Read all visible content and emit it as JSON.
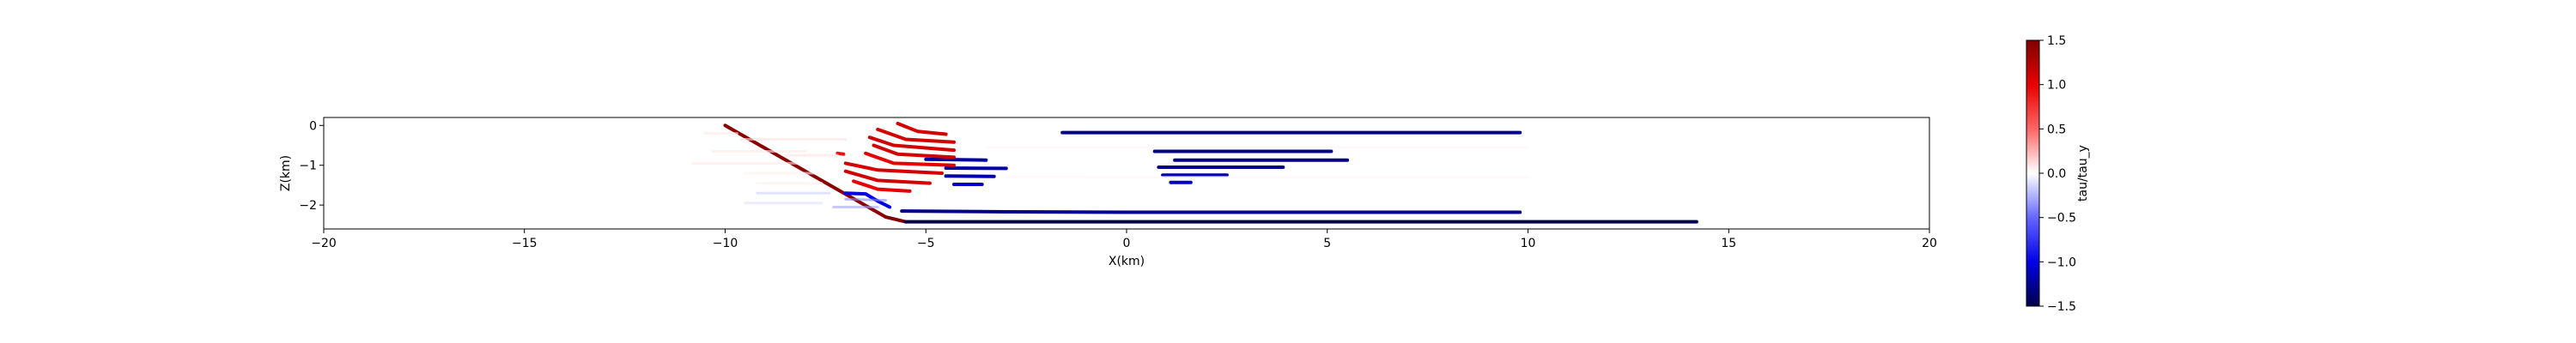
{
  "chart_data": {
    "type": "scatter",
    "title": "",
    "xlabel": "X(km)",
    "ylabel": "Z(km)",
    "xlim": [
      -20,
      20
    ],
    "ylim": [
      -2.6,
      0.2
    ],
    "xticks": [
      "−20",
      "−15",
      "−10",
      "−5",
      "0",
      "5",
      "10",
      "15",
      "20"
    ],
    "xtick_values": [
      -20,
      -15,
      -10,
      -5,
      0,
      5,
      10,
      15,
      20
    ],
    "yticks": [
      "0",
      "−1",
      "−2"
    ],
    "ytick_values": [
      0,
      -1,
      -2
    ],
    "colorbar": {
      "label": "tau/tau_y",
      "range": [
        -1.5,
        1.5
      ],
      "colormap": "seismic",
      "ticks": [
        "1.5",
        "1.0",
        "0.5",
        "0.0",
        "−0.5",
        "−1.0",
        "−1.5"
      ],
      "tick_values": [
        1.5,
        1.0,
        0.5,
        0.0,
        -0.5,
        -1.0,
        -1.5
      ]
    },
    "series": [
      {
        "kind": "line",
        "points": [
          [
            -10.0,
            0.0
          ],
          [
            -6.0,
            -2.3
          ],
          [
            -5.5,
            -2.42
          ],
          [
            14.2,
            -2.42
          ]
        ],
        "value_stops": [
          1.45,
          1.5,
          -1.5,
          -1.5,
          -1.5
        ]
      },
      {
        "kind": "line",
        "points": [
          [
            -5.6,
            -2.15
          ],
          [
            -3.0,
            -2.17
          ],
          [
            0.0,
            -2.18
          ],
          [
            3.0,
            -2.18
          ],
          [
            9.8,
            -2.18
          ]
        ],
        "value": -1.3
      },
      {
        "kind": "line",
        "points": [
          [
            -1.6,
            -0.18
          ],
          [
            9.8,
            -0.18
          ]
        ],
        "value": -1.3
      },
      {
        "kind": "line",
        "points": [
          [
            0.7,
            -0.65
          ],
          [
            5.1,
            -0.65
          ]
        ],
        "value": -1.3
      },
      {
        "kind": "line",
        "points": [
          [
            1.2,
            -0.87
          ],
          [
            5.5,
            -0.87
          ]
        ],
        "value": -1.3
      },
      {
        "kind": "line",
        "points": [
          [
            0.8,
            -1.05
          ],
          [
            3.9,
            -1.05
          ]
        ],
        "value": -1.3
      },
      {
        "kind": "line",
        "points": [
          [
            0.9,
            -1.25
          ],
          [
            2.5,
            -1.25
          ]
        ],
        "value": -1.2
      },
      {
        "kind": "line",
        "points": [
          [
            1.1,
            -1.43
          ],
          [
            1.6,
            -1.43
          ]
        ],
        "value": -1.1
      },
      {
        "kind": "line",
        "points": [
          [
            -5.0,
            -0.85
          ],
          [
            -3.5,
            -0.87
          ]
        ],
        "value": -1.2
      },
      {
        "kind": "line",
        "points": [
          [
            -4.5,
            -1.07
          ],
          [
            -3.0,
            -1.08
          ]
        ],
        "value": -1.2
      },
      {
        "kind": "line",
        "points": [
          [
            -4.5,
            -1.27
          ],
          [
            -3.3,
            -1.28
          ]
        ],
        "value": -1.2
      },
      {
        "kind": "line",
        "points": [
          [
            -4.3,
            -1.48
          ],
          [
            -3.6,
            -1.48
          ]
        ],
        "value": -1.1
      },
      {
        "kind": "line",
        "points": [
          [
            -7.0,
            -1.7
          ],
          [
            -6.5,
            -1.72
          ],
          [
            -6.2,
            -1.9
          ],
          [
            -5.9,
            -2.05
          ]
        ],
        "value": -1.0
      },
      {
        "kind": "line",
        "points": [
          [
            -7.0,
            -1.85
          ],
          [
            -6.0,
            -1.88
          ]
        ],
        "value": -0.4
      },
      {
        "kind": "line",
        "points": [
          [
            -7.3,
            -2.05
          ],
          [
            -6.2,
            -2.05
          ]
        ],
        "value": -0.3
      },
      {
        "kind": "line",
        "points": [
          [
            -9.2,
            -1.7
          ],
          [
            -7.4,
            -1.7
          ]
        ],
        "value": -0.15
      },
      {
        "kind": "line",
        "points": [
          [
            -9.5,
            -1.95
          ],
          [
            -7.6,
            -1.95
          ]
        ],
        "value": -0.1
      },
      {
        "kind": "line",
        "points": [
          [
            -5.7,
            0.05
          ],
          [
            -5.2,
            -0.15
          ],
          [
            -4.5,
            -0.22
          ]
        ],
        "value": 1.1
      },
      {
        "kind": "line",
        "points": [
          [
            -6.2,
            -0.1
          ],
          [
            -5.5,
            -0.35
          ],
          [
            -4.3,
            -0.42
          ]
        ],
        "value": 1.1
      },
      {
        "kind": "line",
        "points": [
          [
            -6.4,
            -0.3
          ],
          [
            -5.8,
            -0.5
          ],
          [
            -4.3,
            -0.62
          ]
        ],
        "value": 1.1
      },
      {
        "kind": "line",
        "points": [
          [
            -6.3,
            -0.5
          ],
          [
            -5.7,
            -0.72
          ],
          [
            -4.3,
            -0.8
          ]
        ],
        "value": 1.1
      },
      {
        "kind": "line",
        "points": [
          [
            -6.5,
            -0.7
          ],
          [
            -5.8,
            -0.95
          ],
          [
            -4.3,
            -1.0
          ]
        ],
        "value": 1.0
      },
      {
        "kind": "line",
        "points": [
          [
            -7.0,
            -0.95
          ],
          [
            -6.2,
            -1.12
          ],
          [
            -4.6,
            -1.2
          ]
        ],
        "value": 1.1
      },
      {
        "kind": "line",
        "points": [
          [
            -7.0,
            -1.15
          ],
          [
            -6.2,
            -1.38
          ],
          [
            -4.9,
            -1.45
          ]
        ],
        "value": 1.1
      },
      {
        "kind": "line",
        "points": [
          [
            -6.8,
            -1.4
          ],
          [
            -6.2,
            -1.6
          ],
          [
            -5.4,
            -1.65
          ]
        ],
        "value": 1.0
      },
      {
        "kind": "line",
        "points": [
          [
            -7.2,
            -0.7
          ],
          [
            -7.05,
            -0.72
          ]
        ],
        "value": 0.9
      },
      {
        "kind": "line",
        "points": [
          [
            -8.5,
            -0.75
          ],
          [
            -7.2,
            -0.75
          ]
        ],
        "value": 0.1
      },
      {
        "kind": "line",
        "points": [
          [
            -9.6,
            -0.35
          ],
          [
            -7.0,
            -0.35
          ]
        ],
        "value": 0.1
      },
      {
        "kind": "line",
        "points": [
          [
            -10.3,
            -0.65
          ],
          [
            -8.0,
            -0.65
          ]
        ],
        "value": 0.08
      },
      {
        "kind": "line",
        "points": [
          [
            -10.8,
            -0.95
          ],
          [
            -8.2,
            -0.95
          ]
        ],
        "value": 0.08
      },
      {
        "kind": "line",
        "points": [
          [
            -10.5,
            -0.2
          ],
          [
            -9.7,
            -0.2
          ]
        ],
        "value": 0.08
      },
      {
        "kind": "line",
        "points": [
          [
            -9.5,
            -1.2
          ],
          [
            -7.8,
            -1.2
          ]
        ],
        "value": 0.05
      },
      {
        "kind": "line",
        "points": [
          [
            -9.2,
            -1.45
          ],
          [
            -7.6,
            -1.45
          ]
        ],
        "value": 0.05
      },
      {
        "kind": "line",
        "points": [
          [
            -3.5,
            -0.55
          ],
          [
            10.0,
            -0.55
          ]
        ],
        "value": 0.03
      },
      {
        "kind": "line",
        "points": [
          [
            -3.0,
            -1.3
          ],
          [
            10.0,
            -1.3
          ]
        ],
        "value": 0.03
      }
    ]
  }
}
